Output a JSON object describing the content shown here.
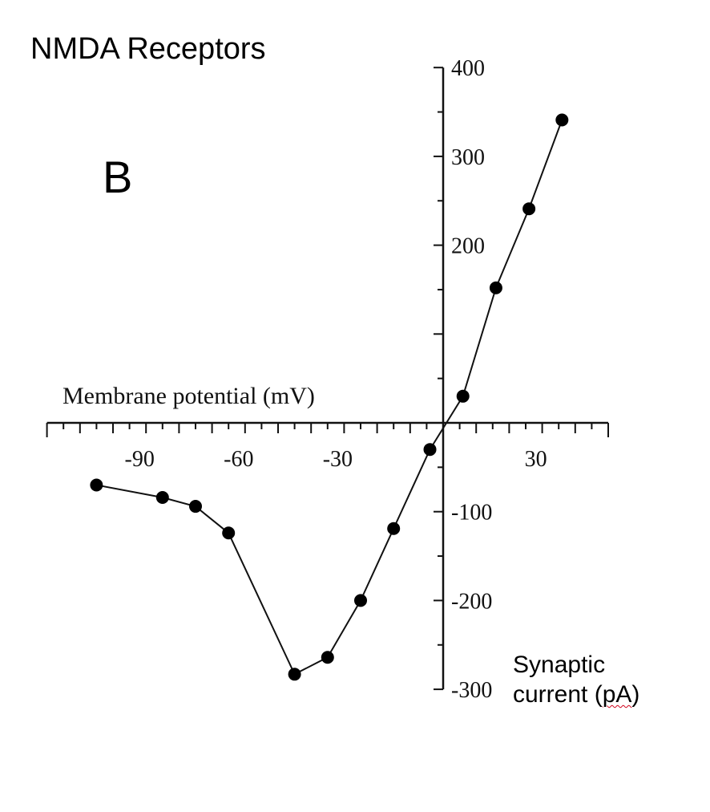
{
  "title": "NMDA Receptors",
  "panel_label": "B",
  "chart_data": {
    "type": "line",
    "xlabel": "Membrane potential (mV)",
    "ylabel_parts": [
      "Synaptic",
      "current (pA)"
    ],
    "xlim": [
      -120,
      50
    ],
    "ylim": [
      -300,
      400
    ],
    "x_tick_labels": [
      -90,
      -60,
      -30,
      30
    ],
    "y_tick_labels": [
      400,
      300,
      200,
      -100,
      -200,
      -300
    ],
    "grid": false,
    "series": [
      {
        "x": [
          -105,
          -85,
          -75,
          -65,
          -45,
          -35,
          -25,
          -15,
          -4,
          6,
          16,
          26,
          36
        ],
        "y": [
          -70,
          -84,
          -94,
          -124,
          -283,
          -264,
          -200,
          -119,
          -30,
          30,
          152,
          241,
          341
        ]
      }
    ]
  }
}
